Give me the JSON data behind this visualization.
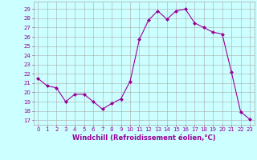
{
  "x": [
    0,
    1,
    2,
    3,
    4,
    5,
    6,
    7,
    8,
    9,
    10,
    11,
    12,
    13,
    14,
    15,
    16,
    17,
    18,
    19,
    20,
    21,
    22,
    23
  ],
  "y": [
    21.5,
    20.7,
    20.5,
    19.0,
    19.8,
    19.8,
    19.0,
    18.2,
    18.8,
    19.3,
    21.2,
    25.7,
    27.8,
    28.8,
    27.9,
    28.8,
    29.0,
    27.5,
    27.0,
    26.5,
    26.3,
    22.2,
    17.9,
    17.1
  ],
  "line_color": "#990099",
  "marker": "D",
  "marker_size": 2,
  "bg_color": "#ccffff",
  "grid_color": "#aaaaaa",
  "xlabel": "Windchill (Refroidissement éolien,°C)",
  "ylabel_ticks": [
    17,
    18,
    19,
    20,
    21,
    22,
    23,
    24,
    25,
    26,
    27,
    28,
    29
  ],
  "ylim": [
    16.5,
    29.8
  ],
  "xlim": [
    -0.5,
    23.5
  ],
  "tick_color": "#990099",
  "label_color": "#990099",
  "tick_fontsize": 5,
  "xlabel_fontsize": 6,
  "linewidth": 0.8
}
